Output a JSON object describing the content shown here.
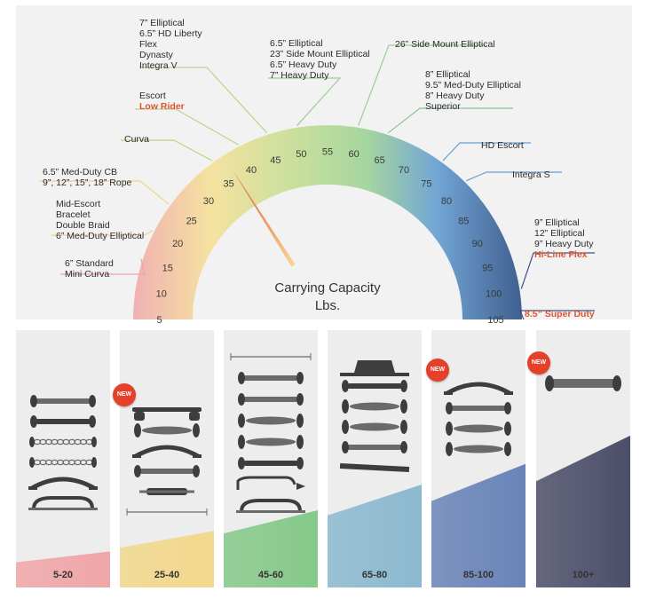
{
  "gauge": {
    "caption_line1": "Carrying Capacity",
    "caption_line2": "Lbs.",
    "ticks": [
      "5",
      "10",
      "15",
      "20",
      "25",
      "30",
      "35",
      "40",
      "45",
      "50",
      "55",
      "60",
      "65",
      "70",
      "75",
      "80",
      "85",
      "90",
      "95",
      "100",
      "105"
    ],
    "needle_value": 37
  },
  "callouts": {
    "c45": {
      "lines": [
        "7” Elliptical",
        "6.5” HD Liberty",
        "Flex",
        "Dynasty",
        "Integra V"
      ]
    },
    "c40": {
      "lines": [
        "Escort"
      ],
      "highlight": "Low Rider"
    },
    "c35": {
      "lines": [
        "Curva"
      ]
    },
    "c25": {
      "lines": [
        "6.5” Med-Duty CB",
        "9”, 12”, 15”, 18” Rope"
      ]
    },
    "c20": {
      "lines": [
        "Mid-Escort",
        "Bracelet",
        "Double Braid",
        "6” Med-Duty Elliptical"
      ]
    },
    "c15": {
      "lines": [
        "6” Standard",
        "Mini Curva"
      ]
    },
    "c50": {
      "lines": [
        "6.5” Elliptical",
        "23” Side Mount Elliptical",
        "6.5” Heavy Duty",
        "7” Heavy Duty"
      ]
    },
    "c60": {
      "lines": [
        "26” Side Mount Elliptical"
      ]
    },
    "c65": {
      "lines": [
        "8” Elliptical",
        "9.5” Med-Duty Elliptical",
        "8” Heavy Duty",
        "Superior"
      ]
    },
    "c75": {
      "lines": [
        "HD Escort"
      ]
    },
    "c80": {
      "lines": [
        "Integra S"
      ]
    },
    "c100": {
      "lines": [
        "9” Elliptical",
        "12” Elliptical",
        "9” Heavy Duty"
      ],
      "highlight": "Hi-Line Flex"
    },
    "c105": {
      "lines": [],
      "highlight": "8.5” Super Duty"
    }
  },
  "panels": [
    {
      "label": "5-20",
      "new": false,
      "level": 0.14,
      "color": "#efa6a8"
    },
    {
      "label": "25-40",
      "new": true,
      "new_text": "NEW",
      "level": 0.22,
      "color": "#f2d88c"
    },
    {
      "label": "45-60",
      "new": false,
      "level": 0.3,
      "color": "#86c98a"
    },
    {
      "label": "65-80",
      "new": false,
      "level": 0.4,
      "color": "#8cb9cf"
    },
    {
      "label": "85-100",
      "new": true,
      "new_text": "NEW",
      "level": 0.48,
      "color": "#6a84b8"
    },
    {
      "label": "100+",
      "new": true,
      "new_text": "NEW",
      "level": 0.59,
      "color": "#4d4f6a"
    }
  ],
  "colors": {
    "highlight": "#e0542e"
  }
}
